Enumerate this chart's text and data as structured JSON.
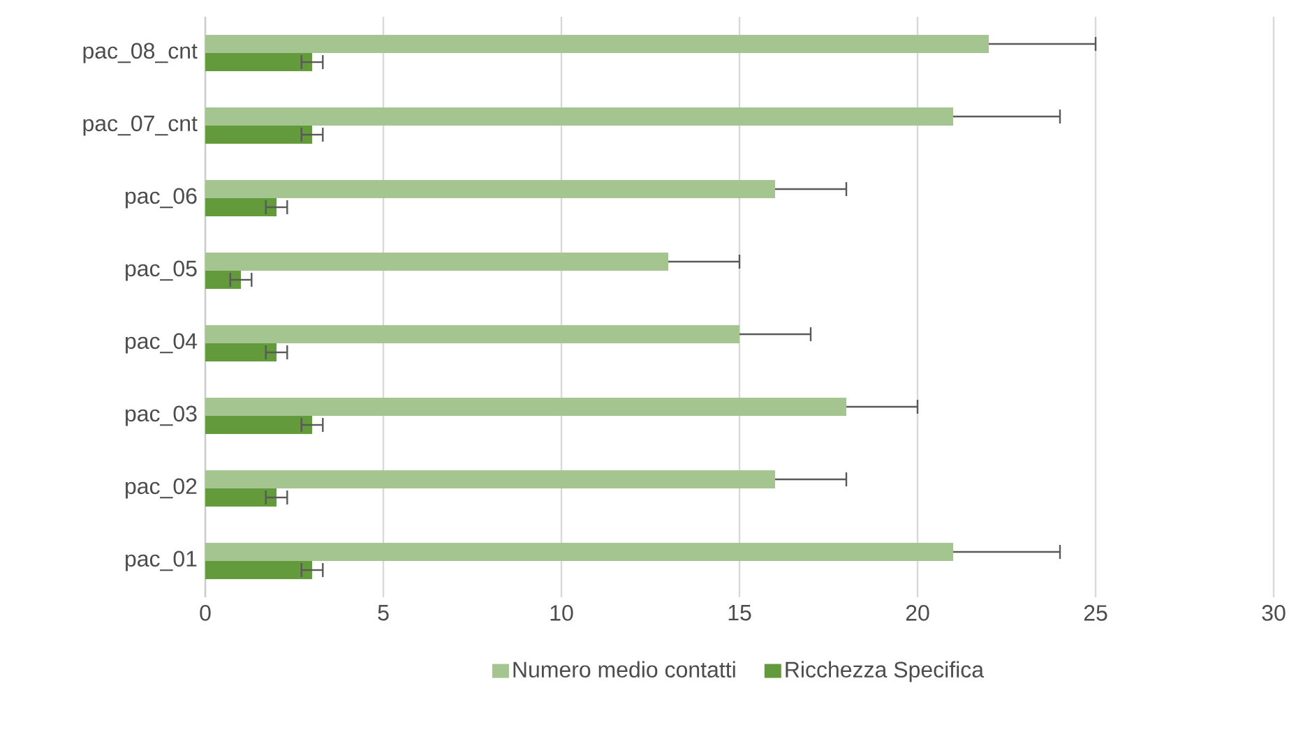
{
  "chart_data": {
    "type": "bar",
    "orientation": "horizontal",
    "categories": [
      "pac_08_cnt",
      "pac_07_cnt",
      "pac_06",
      "pac_05",
      "pac_04",
      "pac_03",
      "pac_02",
      "pac_01"
    ],
    "series": [
      {
        "name": "Numero medio contatti",
        "color": "#a4c490",
        "values": [
          22,
          21,
          16,
          13,
          15,
          18,
          16,
          21
        ],
        "errors": [
          [
            22,
            25
          ],
          [
            21,
            24
          ],
          [
            16,
            18
          ],
          [
            13,
            15
          ],
          [
            15,
            17
          ],
          [
            18,
            20
          ],
          [
            16,
            18
          ],
          [
            21,
            24
          ]
        ]
      },
      {
        "name": "Ricchezza Specifica",
        "color": "#639a3c",
        "values": [
          3,
          3,
          2,
          1,
          2,
          3,
          2,
          3
        ],
        "errors": [
          0.3,
          0.3,
          0.3,
          0.3,
          0.3,
          0.3,
          0.3,
          0.3
        ]
      }
    ],
    "xlim": [
      0,
      30
    ],
    "xticks": [
      0,
      5,
      10,
      15,
      20,
      25,
      30
    ],
    "grid": "x",
    "legend": "bottom"
  }
}
